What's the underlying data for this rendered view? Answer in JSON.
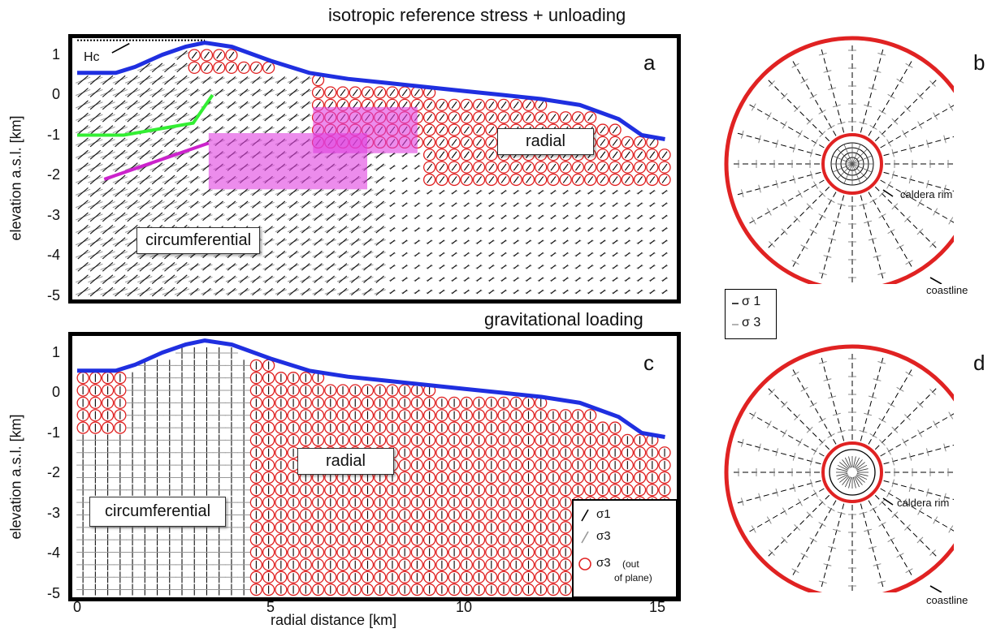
{
  "panel_a": {
    "title": "isotropic reference stress + unloading",
    "letter": "a",
    "label_hc": "Hc",
    "label_circumferential": "circumferential",
    "label_radial": "radial"
  },
  "panel_b": {
    "letter": "b",
    "caldera_rim": "caldera rim",
    "coastline": "coastline"
  },
  "panel_c": {
    "title": "gravitational loading",
    "letter": "c",
    "label_circumferential": "circumferential",
    "label_radial": "radial"
  },
  "panel_d": {
    "letter": "d",
    "caldera_rim": "caldera rim",
    "coastline": "coastline"
  },
  "axis": {
    "ylabel": "elevation a.s.l. [km]",
    "xlabel": "radial distance [km]",
    "yticks_a": [
      "1",
      "0",
      "-1",
      "-2",
      "-3",
      "-4",
      "-5"
    ],
    "yticks_c": [
      "1",
      "0",
      "-1",
      "-2",
      "-3",
      "-4",
      "-5"
    ],
    "xticks": [
      "0",
      "5",
      "10",
      "15"
    ]
  },
  "legend_map": {
    "s1": "σ 1",
    "s3": "σ 3"
  },
  "legend_section": {
    "s1": "σ1",
    "s3": "σ3",
    "s3_oop": "σ3",
    "s3_oop_note1": "(out",
    "s3_oop_note2": "of plane)"
  },
  "colors": {
    "topography": "#1f2fe0",
    "green_line": "#33ee33",
    "magenta_line": "#cc22cc",
    "circle": "#e02222",
    "box_fill": "#ee66ee",
    "coast": "#e02222"
  },
  "chart_data": [
    {
      "type": "line",
      "xlim": [
        0,
        15.2
      ],
      "ylim": [
        -5,
        1.4
      ],
      "series": [
        {
          "x": [
            0,
            1,
            1.5,
            2.2,
            2.8,
            3.3,
            4,
            5,
            6,
            7,
            8,
            9,
            10,
            11,
            12,
            13,
            14,
            14.6,
            15.2
          ],
          "y": [
            0.55,
            0.55,
            0.7,
            1.0,
            1.2,
            1.3,
            1.2,
            0.85,
            0.55,
            0.4,
            0.3,
            0.2,
            0.1,
            0.0,
            -0.1,
            -0.25,
            -0.6,
            -1.0,
            -1.1
          ]
        }
      ]
    },
    {
      "type": "line",
      "xlim": [
        0,
        15.2
      ],
      "ylim": [
        -5,
        1.4
      ],
      "series": [
        {
          "x": [
            0,
            1,
            1.5,
            2.2,
            2.8,
            3.3,
            4,
            5,
            6,
            7,
            8,
            9,
            10,
            11,
            12,
            13,
            14,
            14.6,
            15.2
          ],
          "y": [
            0.55,
            0.55,
            0.7,
            1.0,
            1.2,
            1.3,
            1.2,
            0.85,
            0.55,
            0.4,
            0.3,
            0.2,
            0.1,
            0.0,
            -0.1,
            -0.25,
            -0.6,
            -1.0,
            -1.1
          ]
        }
      ]
    }
  ]
}
